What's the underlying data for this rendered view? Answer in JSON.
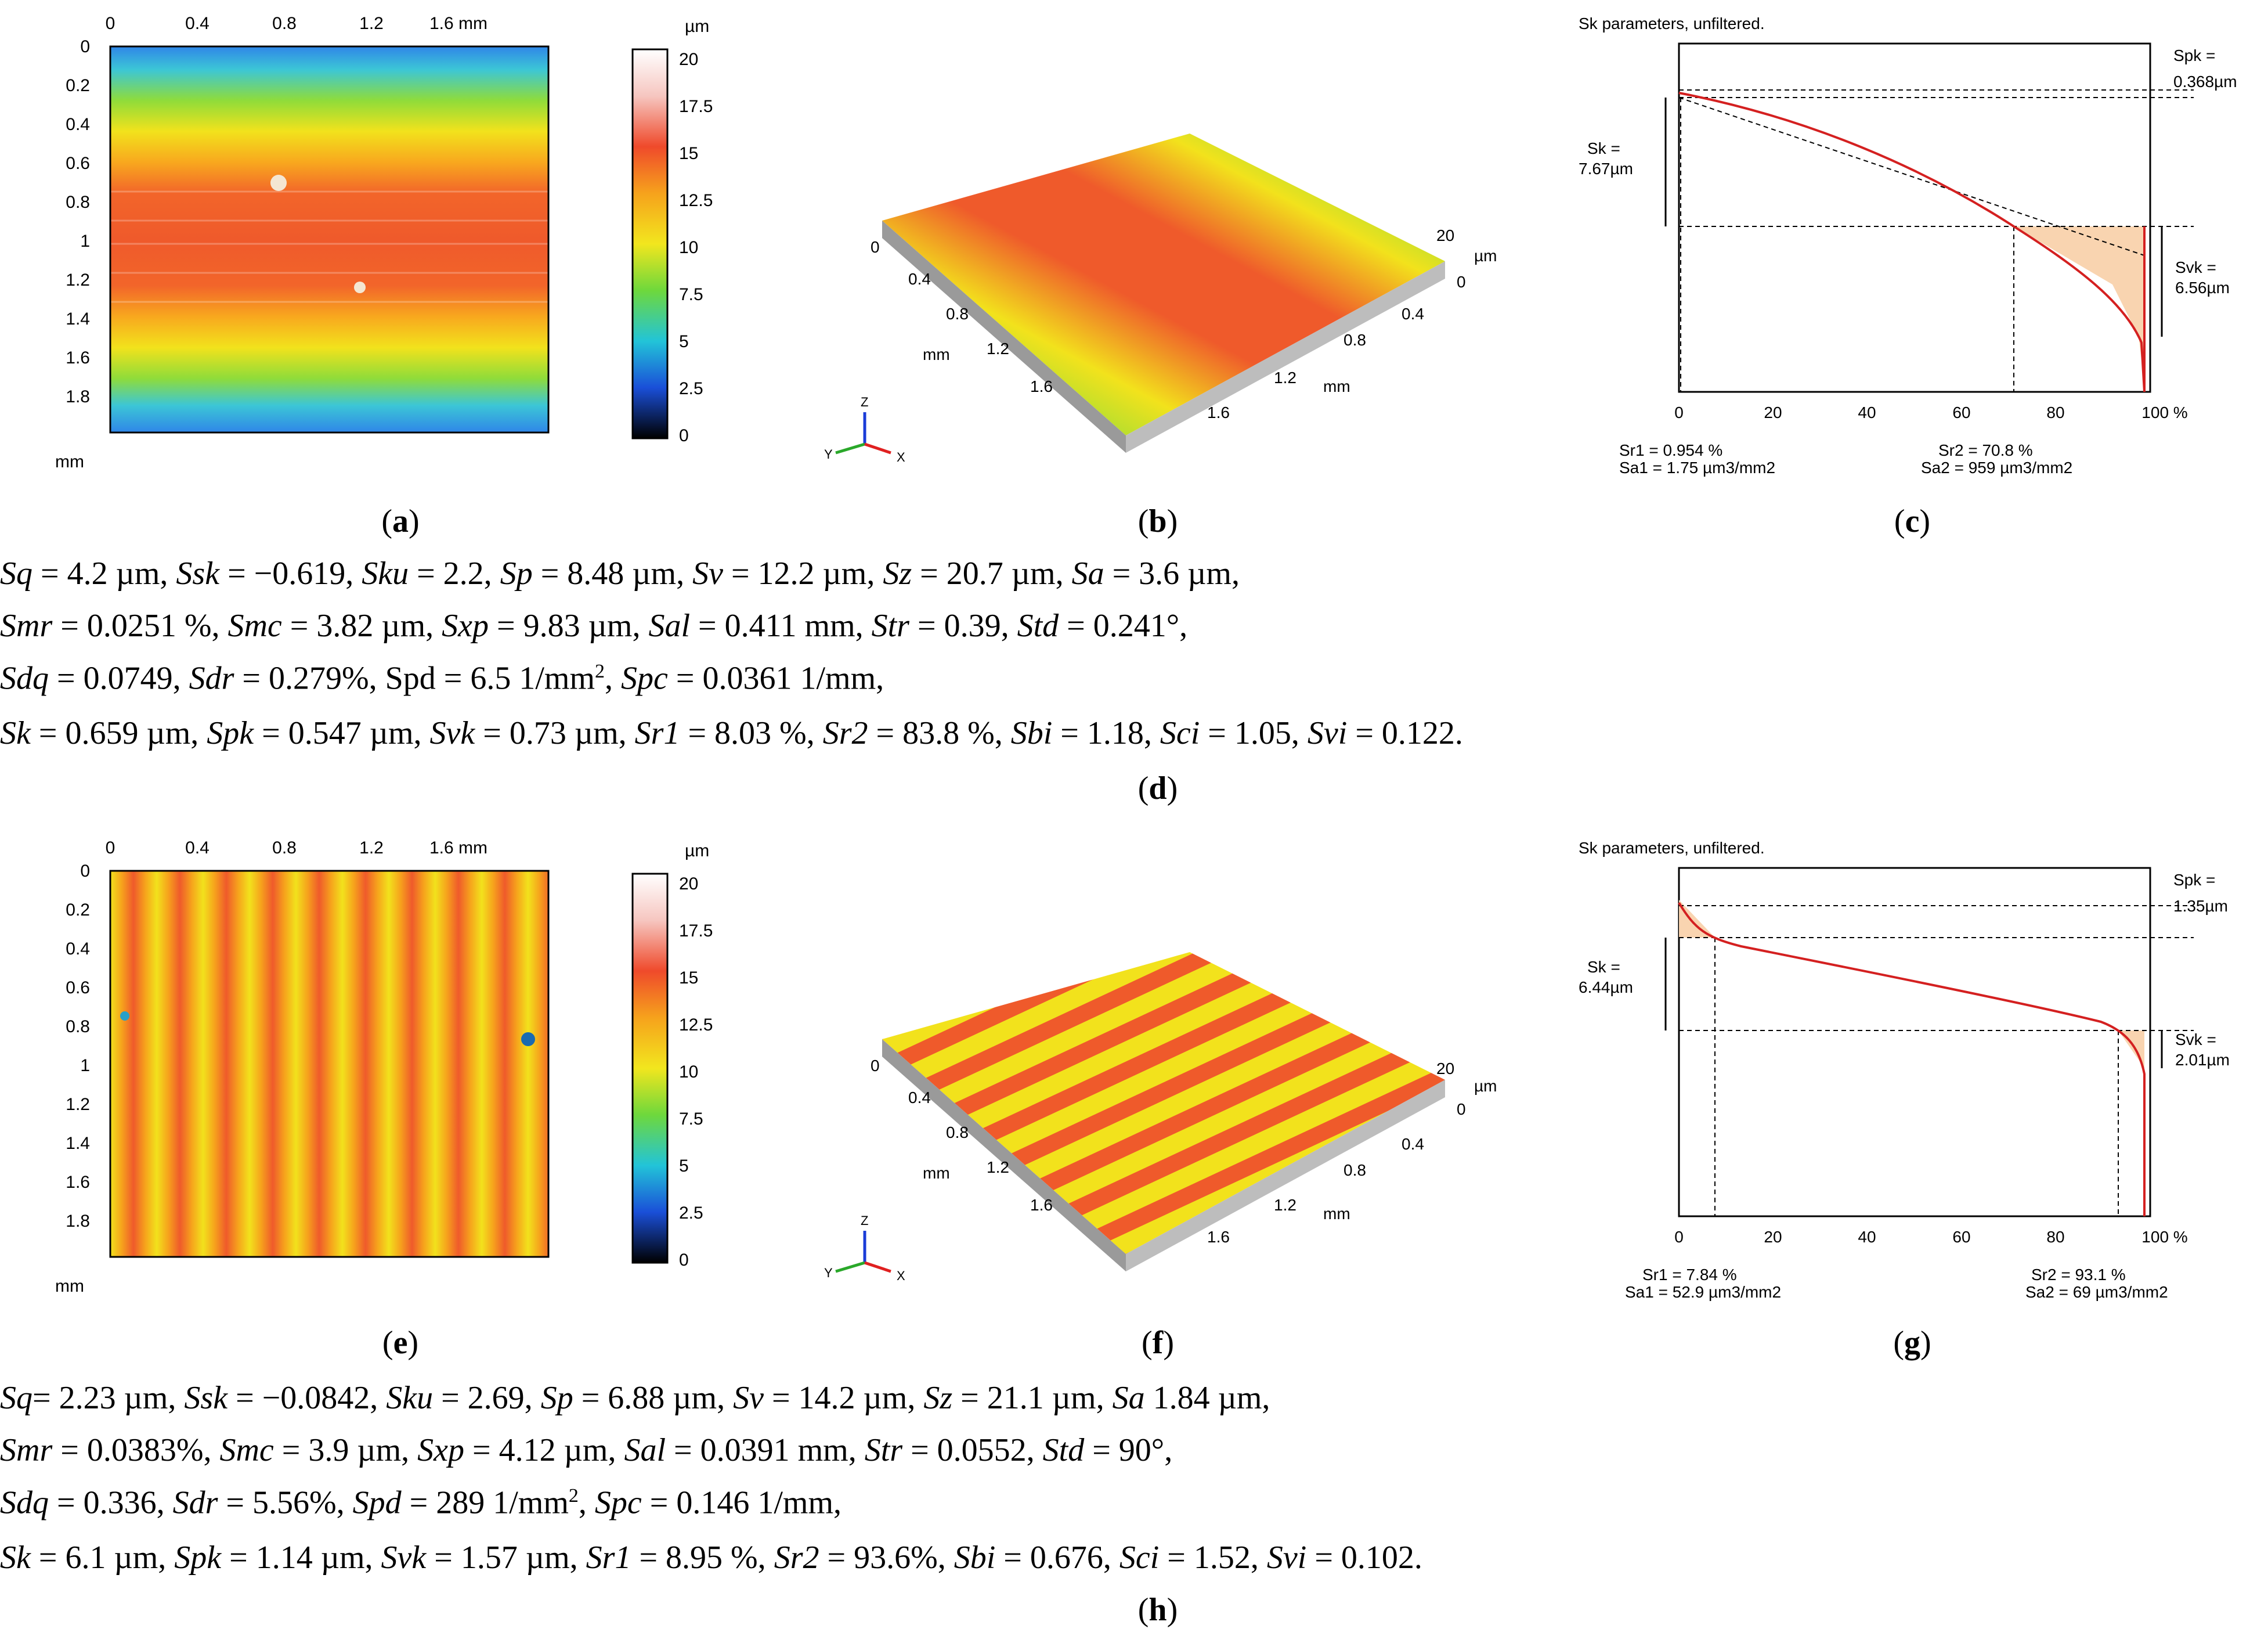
{
  "figure": {
    "colorbar": {
      "unit": "µm",
      "ticks": [
        "20",
        "17.5",
        "15",
        "12.5",
        "10",
        "7.5",
        "5",
        "2.5",
        "0"
      ]
    },
    "map_axes": {
      "x_ticks": [
        "0",
        "0.4",
        "0.8",
        "1.2",
        "1.6 mm"
      ],
      "y_ticks": [
        "0",
        "0.2",
        "0.4",
        "0.6",
        "0.8",
        "1",
        "1.2",
        "1.4",
        "1.6",
        "1.8"
      ],
      "y_unit": "mm"
    },
    "iso_axes": {
      "z_ticks": [
        "20",
        "0"
      ],
      "z_unit": "µm",
      "left_ticks": [
        "0",
        "0.4",
        "0.8",
        "1.2",
        "1.6"
      ],
      "right_ticks": [
        "0.4",
        "0.8",
        "1.2",
        "1.6"
      ],
      "unit": "mm",
      "triad": [
        "Z",
        "Y",
        "X"
      ]
    },
    "sk_common": {
      "title": "Sk parameters, unfiltered.",
      "x_ticks": [
        "0",
        "20",
        "40",
        "60",
        "80",
        "100 %"
      ]
    },
    "top": {
      "captions": {
        "a": "a",
        "b": "b",
        "c": "c",
        "d": "d"
      },
      "sk": {
        "spk_label": "Spk =",
        "spk_value": "0.368µm",
        "sk_label": "Sk =",
        "sk_value": "7.67µm",
        "svk_label": "Svk =",
        "svk_value": "6.56µm",
        "sr1": "Sr1 = 0.954 %",
        "sa1": "Sa1 = 1.75 µm3/mm2",
        "sr2": "Sr2 = 70.8 %",
        "sa2": "Sa2 = 959 µm3/mm2"
      },
      "params": {
        "line1": [
          {
            "n": "Sq",
            "v": " = 4.2 µm, "
          },
          {
            "n": "Ssk",
            "v": " = −0.619, "
          },
          {
            "n": "Sku",
            "v": " = 2.2, "
          },
          {
            "n": "Sp",
            "v": " = 8.48 µm, "
          },
          {
            "n": "Sv",
            "v": " = 12.2 µm, "
          },
          {
            "n": "Sz",
            "v": " = 20.7 µm, "
          },
          {
            "n": "Sa",
            "v": " = 3.6 µm,"
          }
        ],
        "line2": [
          {
            "n": "Smr",
            "v": " = 0.0251 %, "
          },
          {
            "n": "Smc",
            "v": " = 3.82 µm, "
          },
          {
            "n": "Sxp",
            "v": " = 9.83 µm, "
          },
          {
            "n": "Sal",
            "v": " = 0.411 mm, "
          },
          {
            "n": "Str",
            "v": " = 0.39, "
          },
          {
            "n": "Std",
            "v": " = 0.241°,"
          }
        ],
        "line3_a": [
          {
            "n": "Sdq",
            "v": " = 0.0749, "
          },
          {
            "n": "Sdr",
            "v": " = 0.279%, "
          }
        ],
        "line3_spd": "Spd = 6.5 1/mm",
        "line3_sup": "2",
        "line3_sep": ", ",
        "line3_b": [
          {
            "n": "Spc",
            "v": " = 0.0361 1/mm,"
          }
        ],
        "line4": [
          {
            "n": "Sk",
            "v": " = 0.659 µm, "
          },
          {
            "n": "Spk",
            "v": " = 0.547 µm, "
          },
          {
            "n": "Svk",
            "v": " = 0.73 µm, "
          },
          {
            "n": "Sr1",
            "v": " = 8.03 %, "
          },
          {
            "n": "Sr2",
            "v": " = 83.8 %, "
          },
          {
            "n": "Sbi",
            "v": " = 1.18, "
          },
          {
            "n": "Sci",
            "v": " = 1.05, "
          },
          {
            "n": "Svi",
            "v": " = 0.122."
          }
        ]
      }
    },
    "bottom": {
      "captions": {
        "e": "e",
        "f": "f",
        "g": "g",
        "h": "h"
      },
      "sk": {
        "spk_label": "Spk =",
        "spk_value": "1.35µm",
        "sk_label": "Sk =",
        "sk_value": "6.44µm",
        "svk_label": "Svk =",
        "svk_value": "2.01µm",
        "sr1": "Sr1 = 7.84 %",
        "sa1": "Sa1 = 52.9 µm3/mm2",
        "sr2": "Sr2 = 93.1 %",
        "sa2": "Sa2 = 69 µm3/mm2"
      },
      "params": {
        "line1": [
          {
            "n": "Sq",
            "v": "= 2.23 µm, "
          },
          {
            "n": "Ssk",
            "v": " = −0.0842, "
          },
          {
            "n": "Sku",
            "v": " = 2.69, "
          },
          {
            "n": "Sp",
            "v": " = 6.88 µm, "
          },
          {
            "n": "Sv",
            "v": " = 14.2 µm, "
          },
          {
            "n": "Sz",
            "v": " = 21.1 µm, "
          },
          {
            "n": "Sa",
            "v": " 1.84 µm,"
          }
        ],
        "line2": [
          {
            "n": "Smr",
            "v": " = 0.0383%, "
          },
          {
            "n": "Smc",
            "v": " = 3.9 µm, "
          },
          {
            "n": "Sxp",
            "v": " = 4.12 µm, "
          },
          {
            "n": "Sal",
            "v": " = 0.0391 mm, "
          },
          {
            "n": "Str",
            "v": " = 0.0552, "
          },
          {
            "n": "Std",
            "v": " = 90°,"
          }
        ],
        "line3_a": [
          {
            "n": "Sdq",
            "v": " = 0.336, "
          },
          {
            "n": "Sdr",
            "v": " = 5.56%, "
          },
          {
            "n": "Spd",
            "v": " = 289 1/mm"
          }
        ],
        "line3_sup": "2",
        "line3_sep": ", ",
        "line3_b": [
          {
            "n": "Spc",
            "v": " = 0.146 1/mm,"
          }
        ],
        "line4": [
          {
            "n": "Sk",
            "v": " = 6.1 µm, "
          },
          {
            "n": "Spk",
            "v": " = 1.14 µm, "
          },
          {
            "n": "Svk",
            "v": " = 1.57 µm, "
          },
          {
            "n": "Sr1",
            "v": " = 8.95 %, "
          },
          {
            "n": "Sr2",
            "v": " = 93.6%, "
          },
          {
            "n": "Sbi",
            "v": " = 0.676, "
          },
          {
            "n": "Sci",
            "v": " = 1.52, "
          },
          {
            "n": "Svi",
            "v": " = 0.102."
          }
        ]
      }
    }
  }
}
